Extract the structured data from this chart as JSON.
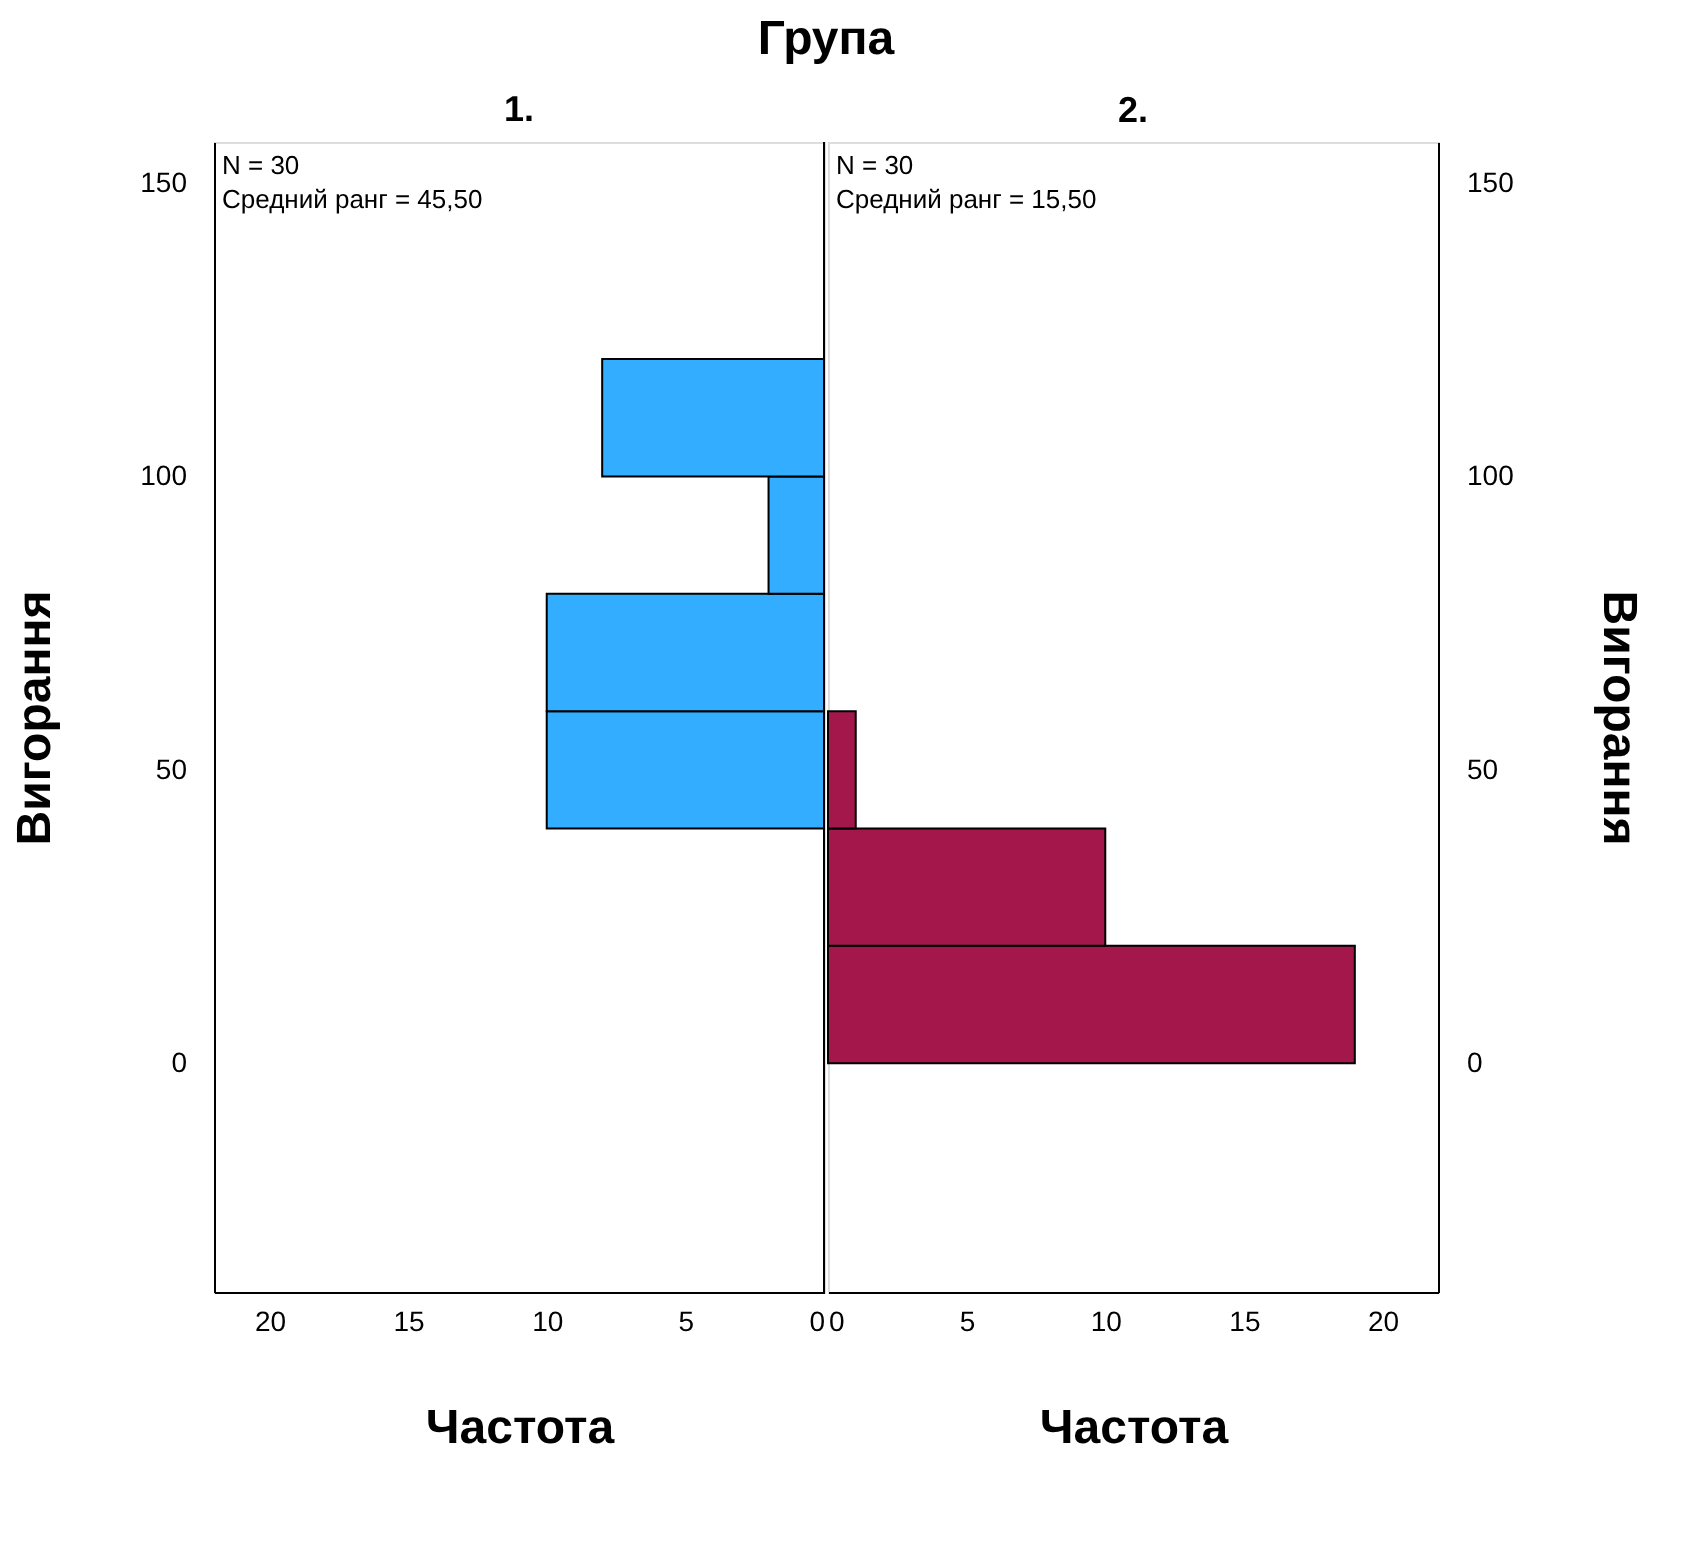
{
  "chart_data": [
    {
      "type": "histogram",
      "orientation": "horizontal",
      "title": "Група",
      "subtitle": "1.",
      "xlabel": "Частота",
      "ylabel": "Вигорання",
      "bins": [
        40,
        60,
        80,
        100,
        120
      ],
      "values": [
        10,
        10,
        2,
        8
      ],
      "color": "#33adff",
      "xlim": [
        22,
        0
      ],
      "xticks": [
        20,
        15,
        10,
        5,
        0
      ],
      "ylim": [
        -39,
        157
      ],
      "yticks": [
        0,
        50,
        100,
        150
      ],
      "annotations": [
        "N = 30",
        "Средний ранг = 45,50"
      ],
      "ref_lines": [
        {
          "axis": "x",
          "value": 0,
          "color": "#000000"
        }
      ],
      "grid": false
    },
    {
      "type": "histogram",
      "orientation": "horizontal",
      "subtitle": "2.",
      "xlabel": "Частота",
      "ylabel": "Вигорання",
      "bins": [
        0,
        20,
        40,
        60
      ],
      "values": [
        19,
        10,
        1
      ],
      "color": "#a3174b",
      "xlim": [
        0,
        22
      ],
      "xticks": [
        0,
        5,
        10,
        15,
        20
      ],
      "ylim": [
        -39,
        157
      ],
      "yticks": [
        0,
        50,
        100,
        150
      ],
      "annotations": [
        "N = 30",
        "Средний ранг = 15,50"
      ],
      "grid": false
    }
  ]
}
